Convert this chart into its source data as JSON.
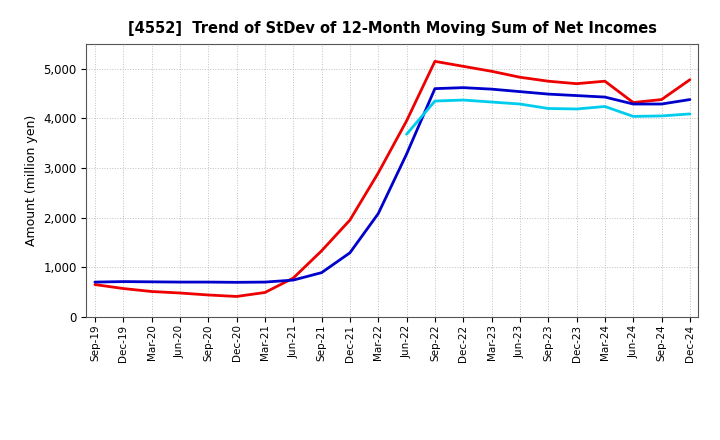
{
  "title": "[4552]  Trend of StDev of 12-Month Moving Sum of Net Incomes",
  "ylabel": "Amount (million yen)",
  "background_color": "#ffffff",
  "grid_color": "#b0b0b0",
  "x_labels": [
    "Sep-19",
    "Dec-19",
    "Mar-20",
    "Jun-20",
    "Sep-20",
    "Dec-20",
    "Mar-21",
    "Jun-21",
    "Sep-21",
    "Dec-21",
    "Mar-22",
    "Jun-22",
    "Sep-22",
    "Dec-22",
    "Mar-23",
    "Jun-23",
    "Sep-23",
    "Dec-23",
    "Mar-24",
    "Jun-24",
    "Sep-24",
    "Dec-24"
  ],
  "series_3yr": {
    "color": "#ee0000",
    "data": [
      650,
      570,
      510,
      480,
      440,
      410,
      490,
      780,
      1330,
      1950,
      2900,
      3950,
      5150,
      5050,
      4950,
      4830,
      4750,
      4700,
      4750,
      4320,
      4380,
      4780
    ]
  },
  "series_5yr": {
    "color": "#0000cc",
    "data": [
      700,
      710,
      705,
      700,
      700,
      695,
      700,
      740,
      890,
      1290,
      2080,
      3280,
      4600,
      4620,
      4590,
      4540,
      4490,
      4460,
      4430,
      4290,
      4290,
      4380
    ]
  },
  "series_7yr": {
    "color": "#00ccee",
    "data": [
      null,
      null,
      null,
      null,
      null,
      null,
      null,
      null,
      null,
      null,
      null,
      3680,
      4350,
      4370,
      4330,
      4290,
      4200,
      4190,
      4240,
      4040,
      4050,
      4090
    ]
  },
  "series_10yr": {
    "color": "#007700",
    "data": [
      null,
      null,
      null,
      null,
      null,
      null,
      null,
      null,
      null,
      null,
      null,
      null,
      null,
      null,
      null,
      null,
      null,
      null,
      null,
      null,
      null,
      null
    ]
  },
  "ylim": [
    0,
    5500
  ],
  "yticks": [
    0,
    1000,
    2000,
    3000,
    4000,
    5000
  ]
}
